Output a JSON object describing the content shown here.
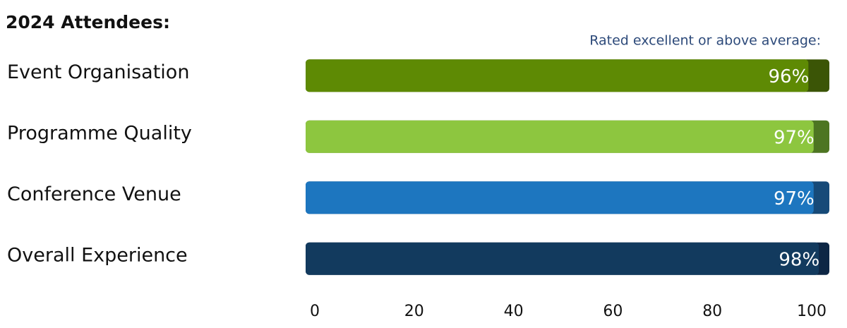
{
  "chart_data": {
    "type": "bar",
    "orientation": "horizontal",
    "title": "2024 Attendees:",
    "subtitle": "Rated excellent or above average:",
    "categories": [
      "Event Organisation",
      "Programme Quality",
      "Conference Venue",
      "Overall Experience"
    ],
    "values": [
      96,
      97,
      97,
      98
    ],
    "value_labels": [
      "96%",
      "97%",
      "97%",
      "98%"
    ],
    "colors": [
      "#5e8a04",
      "#8dc63f",
      "#1d76bf",
      "#123a5e"
    ],
    "track_colors": [
      "#3b5506",
      "#4d7522",
      "#174a78",
      "#0d2644"
    ],
    "xlim": [
      0,
      100
    ],
    "xticks": [
      0,
      20,
      40,
      60,
      80,
      100
    ],
    "grid": false
  }
}
